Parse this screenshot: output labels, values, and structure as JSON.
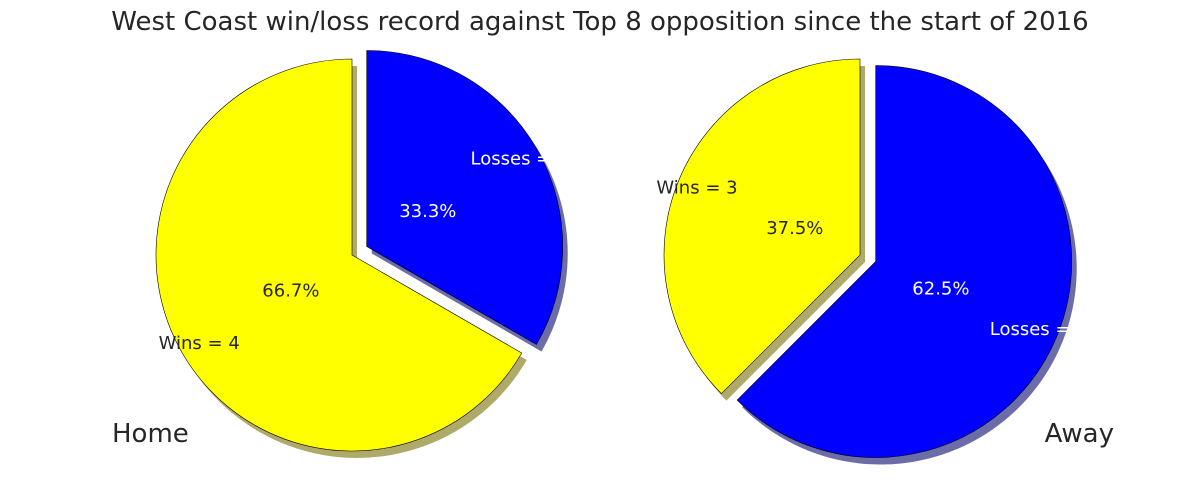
{
  "chart_data": {
    "type": "pie",
    "title": "West Coast win/loss record against Top 8 opposition since the start of 2016",
    "pies": [
      {
        "name": "Home",
        "slices": [
          {
            "label": "Losses = 2",
            "value": 2,
            "percent_label": "33.3%",
            "color": "#0000ff",
            "text_color": "#ffffff",
            "exploded": true
          },
          {
            "label": "Wins = 4",
            "value": 4,
            "percent_label": "66.7%",
            "color": "#ffff00",
            "text_color": "#262626",
            "exploded": false
          }
        ]
      },
      {
        "name": "Away",
        "slices": [
          {
            "label": "Losses = 5",
            "value": 5,
            "percent_label": "62.5%",
            "color": "#0000ff",
            "text_color": "#ffffff",
            "exploded": true
          },
          {
            "label": "Wins = 3",
            "value": 3,
            "percent_label": "37.5%",
            "color": "#ffff00",
            "text_color": "#262626",
            "exploded": false
          }
        ]
      }
    ],
    "start_angle": "12 o'clock",
    "direction": "clockwise",
    "shadow": true
  }
}
